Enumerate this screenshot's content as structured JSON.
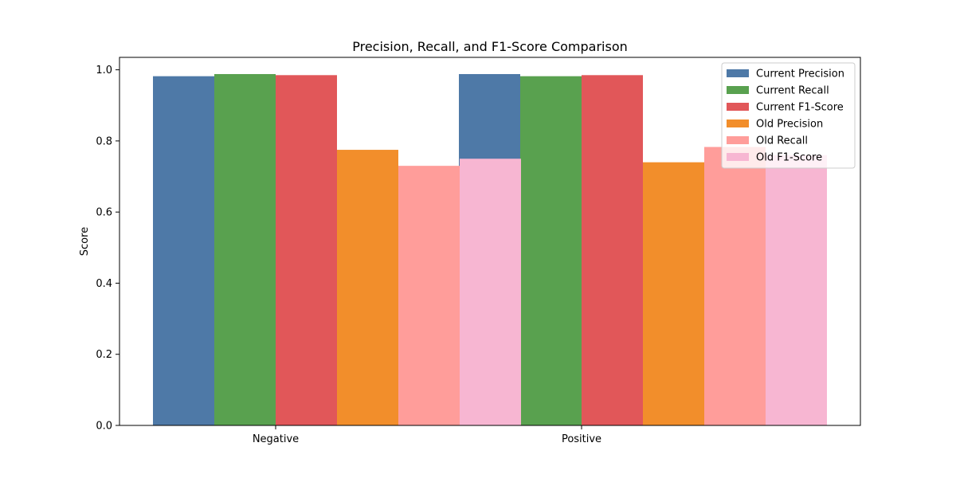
{
  "chart_data": {
    "type": "bar",
    "title": "Precision, Recall, and F1-Score Comparison",
    "xlabel": "",
    "ylabel": "Score",
    "categories": [
      "Negative",
      "Positive"
    ],
    "ylim": [
      0,
      1.035
    ],
    "yticks": [
      "0.0",
      "0.2",
      "0.4",
      "0.6",
      "0.8",
      "1.0"
    ],
    "grid": false,
    "legend_position": "top-right",
    "series": [
      {
        "name": "Current Precision",
        "color": "#4e79a7",
        "values": [
          0.982,
          0.988
        ]
      },
      {
        "name": "Current Recall",
        "color": "#59a14f",
        "values": [
          0.988,
          0.982
        ]
      },
      {
        "name": "Current F1-Score",
        "color": "#e15759",
        "values": [
          0.985,
          0.985
        ]
      },
      {
        "name": "Old Precision",
        "color": "#f28e2b",
        "values": [
          0.775,
          0.74
        ]
      },
      {
        "name": "Old Recall",
        "color": "#ff9d9a",
        "values": [
          0.73,
          0.783
        ]
      },
      {
        "name": "Old F1-Score",
        "color": "#f7b6d2",
        "values": [
          0.75,
          0.76
        ]
      }
    ],
    "overlap_order": [
      [
        "Current Precision",
        "Current Recall",
        "Current F1-Score",
        "Old Precision",
        "Old Recall",
        "Old F1-Score"
      ]
    ]
  }
}
